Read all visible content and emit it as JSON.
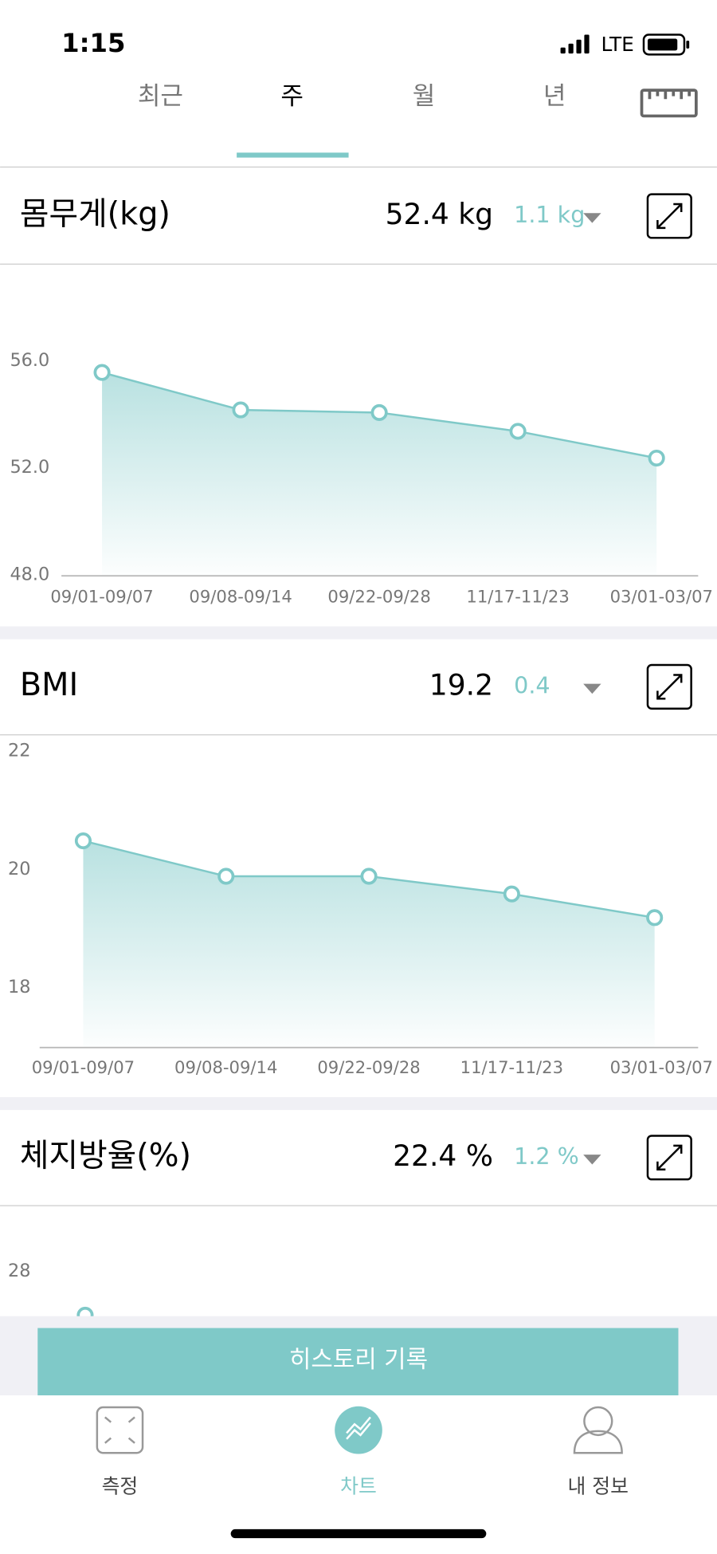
{
  "status_bar": {
    "time": "1:15",
    "network": "LTE"
  },
  "tabs": [
    "최근",
    "주",
    "월",
    "년"
  ],
  "panels": [
    {
      "title": "몸무게(kg)",
      "value": "52.4 kg",
      "change": "1.1 kg",
      "chart": {
        "type": "line",
        "categories": [
          "09/01-09/07",
          "09/08-09/14",
          "09/22-09/28",
          "11/17-11/23",
          "03/01-03/07"
        ],
        "values": [
          55.6,
          54.2,
          54.1,
          53.4,
          52.4
        ],
        "ylim": [
          48,
          56
        ],
        "yticks": [
          {
            "value": 48,
            "label": "48.0"
          },
          {
            "value": 52,
            "label": "52.0"
          },
          {
            "value": 56,
            "label": "56.0"
          }
        ],
        "color": "#7fc9c8"
      }
    },
    {
      "title": "BMI",
      "value": "19.2",
      "change": "0.4",
      "chart": {
        "type": "line",
        "categories": [
          "09/01-09/07",
          "09/08-09/14",
          "09/22-09/28",
          "11/17-11/23",
          "03/01-03/07"
        ],
        "values": [
          20.5,
          19.9,
          19.9,
          19.6,
          19.2
        ],
        "ylim": [
          17,
          22
        ],
        "yticks": [
          18,
          20,
          22
        ],
        "color": "#7fc9c8"
      }
    },
    {
      "title": "체지방율(%)",
      "value": "22.4 %",
      "change": "1.2 %",
      "chart": {
        "type": "line",
        "yticks": [
          28
        ],
        "color": "#7fc9c8"
      }
    }
  ],
  "button": "히스토리 기록",
  "nav": [
    "측정",
    "차트",
    "내 정보"
  ]
}
